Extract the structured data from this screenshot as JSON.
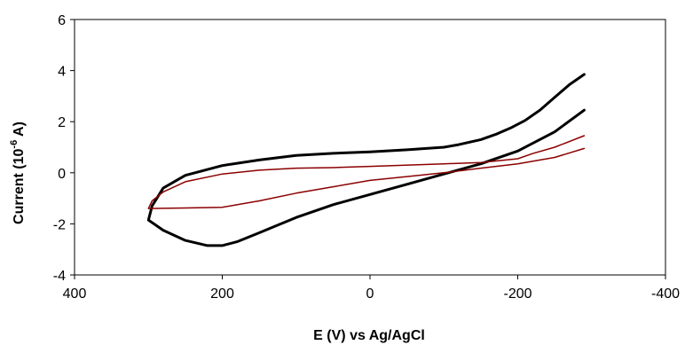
{
  "chart_data": {
    "type": "line",
    "title": "",
    "xlabel": "E (V) vs Ag/AgCl",
    "ylabel": {
      "base": "Current (10",
      "sup": "-6",
      "tail": " A)"
    },
    "xlim": [
      400,
      -400
    ],
    "ylim": [
      -4,
      6
    ],
    "xticks": [
      400,
      200,
      0,
      -200,
      -400
    ],
    "yticks": [
      -4,
      -2,
      0,
      2,
      4,
      6
    ],
    "grid": false,
    "legend": "none",
    "series": [
      {
        "color": "#000000",
        "points": [
          [
            -290,
            3.85
          ],
          [
            -270,
            3.45
          ],
          [
            -250,
            2.95
          ],
          [
            -230,
            2.45
          ],
          [
            -210,
            2.05
          ],
          [
            -190,
            1.75
          ],
          [
            -170,
            1.5
          ],
          [
            -150,
            1.3
          ],
          [
            -120,
            1.1
          ],
          [
            -100,
            1.0
          ],
          [
            -50,
            0.9
          ],
          [
            0,
            0.82
          ],
          [
            50,
            0.76
          ],
          [
            100,
            0.68
          ],
          [
            150,
            0.5
          ],
          [
            200,
            0.28
          ],
          [
            250,
            -0.1
          ],
          [
            280,
            -0.6
          ],
          [
            295,
            -1.3
          ],
          [
            300,
            -1.85
          ],
          [
            280,
            -2.25
          ],
          [
            250,
            -2.65
          ],
          [
            220,
            -2.85
          ],
          [
            200,
            -2.85
          ],
          [
            180,
            -2.7
          ],
          [
            150,
            -2.35
          ],
          [
            100,
            -1.75
          ],
          [
            50,
            -1.25
          ],
          [
            0,
            -0.85
          ],
          [
            -50,
            -0.45
          ],
          [
            -100,
            -0.05
          ],
          [
            -150,
            0.35
          ],
          [
            -200,
            0.85
          ],
          [
            -250,
            1.6
          ],
          [
            -290,
            2.45
          ]
        ]
      },
      {
        "color": "#8b0000",
        "points": [
          [
            -290,
            1.45
          ],
          [
            -250,
            1.0
          ],
          [
            -220,
            0.75
          ],
          [
            -200,
            0.55
          ],
          [
            -150,
            0.4
          ],
          [
            -100,
            0.35
          ],
          [
            0,
            0.25
          ],
          [
            50,
            0.2
          ],
          [
            100,
            0.18
          ],
          [
            150,
            0.1
          ],
          [
            200,
            -0.05
          ],
          [
            250,
            -0.35
          ],
          [
            280,
            -0.75
          ],
          [
            295,
            -1.1
          ],
          [
            300,
            -1.4
          ],
          [
            250,
            -1.38
          ],
          [
            200,
            -1.35
          ],
          [
            150,
            -1.1
          ],
          [
            100,
            -0.8
          ],
          [
            50,
            -0.55
          ],
          [
            0,
            -0.3
          ],
          [
            -50,
            -0.15
          ],
          [
            -100,
            0.0
          ],
          [
            -150,
            0.18
          ],
          [
            -200,
            0.35
          ],
          [
            -250,
            0.6
          ],
          [
            -290,
            0.95
          ]
        ]
      }
    ]
  }
}
